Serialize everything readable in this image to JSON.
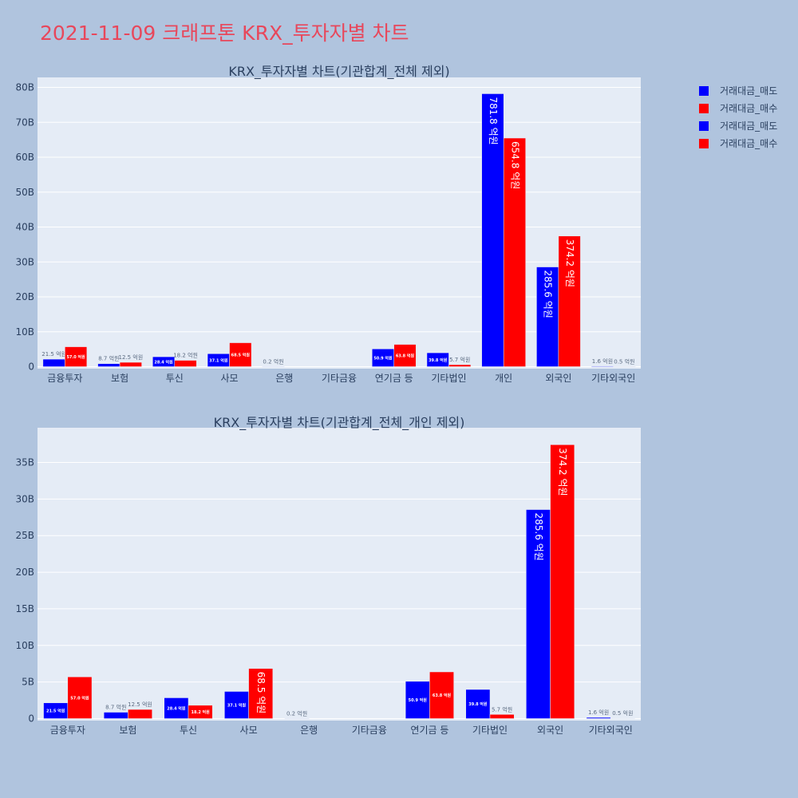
{
  "page_title": "2021-11-09 크래프톤 KRX_투자자별 차트",
  "colors": {
    "sell": "#0000ff",
    "buy": "#ff0000",
    "plot_bg": "#e5ecf6",
    "page_bg": "#b0c4de",
    "title": "#e8475b"
  },
  "legend": [
    {
      "label": "거래대금_매도",
      "color": "#0000ff"
    },
    {
      "label": "거래대금_매수",
      "color": "#ff0000"
    },
    {
      "label": "거래대금_매도",
      "color": "#0000ff"
    },
    {
      "label": "거래대금_매수",
      "color": "#ff0000"
    }
  ],
  "chart_data": [
    {
      "type": "bar",
      "title": "KRX_투자자별 차트(기관합계_전체 제외)",
      "categories": [
        "금융투자",
        "보험",
        "투신",
        "사모",
        "은행",
        "기타금융",
        "연기금 등",
        "기타법인",
        "개인",
        "외국인",
        "기타외국인"
      ],
      "ylim": [
        0,
        80
      ],
      "yticks": [
        0,
        10,
        20,
        30,
        40,
        50,
        60,
        70,
        80
      ],
      "ytick_labels": [
        "0",
        "10B",
        "20B",
        "30B",
        "40B",
        "50B",
        "60B",
        "70B",
        "80B"
      ],
      "grid": true,
      "series": [
        {
          "name": "거래대금_매도",
          "values": [
            2.15,
            0.87,
            2.84,
            3.71,
            0.02,
            0,
            5.09,
            3.98,
            78.18,
            28.56,
            0.16
          ],
          "labels": [
            "21.5 억원",
            "8.7 억원",
            "28.4 억원",
            "37.1 억원",
            "0.2 억원",
            "",
            "50.9 억원",
            "39.8 억원",
            "781.8 억원",
            "285.6 억원",
            "1.6 억원"
          ]
        },
        {
          "name": "거래대금_매수",
          "values": [
            5.7,
            1.25,
            1.82,
            6.85,
            0,
            0,
            6.38,
            0.57,
            65.48,
            37.42,
            0.05
          ],
          "labels": [
            "57.0 억원",
            "12.5 억원",
            "18.2 억원",
            "68.5 억원",
            "",
            "",
            "63.8 억원",
            "5.7 억원",
            "654.8 억원",
            "374.2 억원",
            "0.5 억원"
          ]
        }
      ]
    },
    {
      "type": "bar",
      "title": "KRX_투자자별 차트(기관합계_전체_개인 제외)",
      "categories": [
        "금융투자",
        "보험",
        "투신",
        "사모",
        "은행",
        "기타금융",
        "연기금 등",
        "기타법인",
        "외국인",
        "기타외국인"
      ],
      "ylim": [
        0,
        40
      ],
      "yticks": [
        0,
        5,
        10,
        15,
        20,
        25,
        30,
        35
      ],
      "ytick_labels": [
        "0",
        "5B",
        "10B",
        "15B",
        "20B",
        "25B",
        "30B",
        "35B"
      ],
      "grid": true,
      "series": [
        {
          "name": "거래대금_매도",
          "values": [
            2.15,
            0.87,
            2.84,
            3.71,
            0.02,
            0,
            5.09,
            3.98,
            28.56,
            0.16
          ],
          "labels": [
            "21.5 억원",
            "8.7 억원",
            "28.4 억원",
            "37.1 억원",
            "0.2 억원",
            "",
            "50.9 억원",
            "39.8 억원",
            "285.6 억원",
            "1.6 억원"
          ]
        },
        {
          "name": "거래대금_매수",
          "values": [
            5.7,
            1.25,
            1.82,
            6.85,
            0,
            0,
            6.38,
            0.57,
            37.42,
            0.05
          ],
          "labels": [
            "57.0 억원",
            "12.5 억원",
            "18.2 억원",
            "68.5 억원",
            "",
            "",
            "63.8 억원",
            "5.7 억원",
            "374.2 억원",
            "0.5 억원"
          ]
        }
      ]
    }
  ]
}
